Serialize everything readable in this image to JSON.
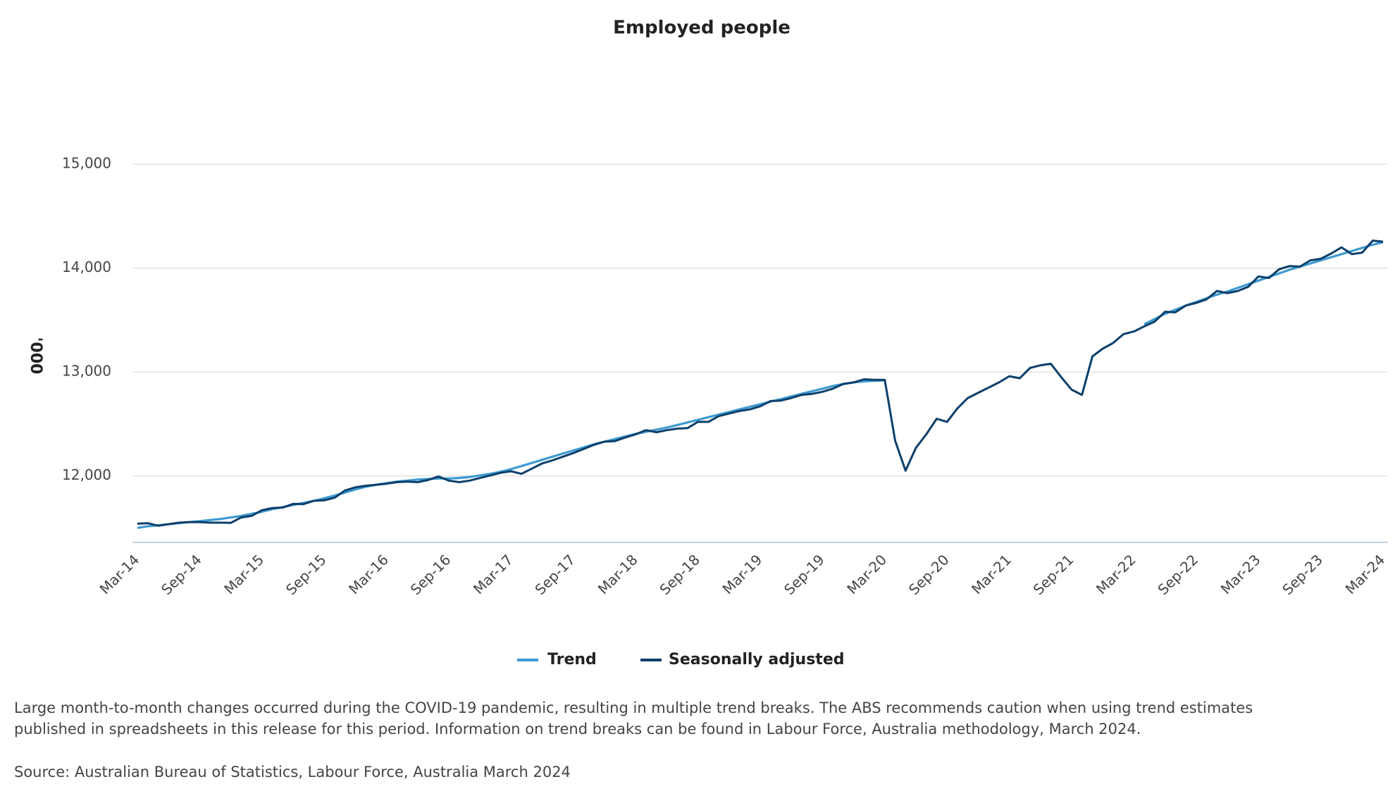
{
  "chart_data": {
    "type": "line",
    "title": "Employed people",
    "y_label": "'000",
    "categories": [
      "Mar-14",
      null,
      null,
      null,
      null,
      null,
      "Sep-14",
      null,
      null,
      null,
      null,
      null,
      "Mar-15",
      null,
      null,
      null,
      null,
      null,
      "Sep-15",
      null,
      null,
      null,
      null,
      null,
      "Mar-16",
      null,
      null,
      null,
      null,
      null,
      "Sep-16",
      null,
      null,
      null,
      null,
      null,
      "Mar-17",
      null,
      null,
      null,
      null,
      null,
      "Sep-17",
      null,
      null,
      null,
      null,
      null,
      "Mar-18",
      null,
      null,
      null,
      null,
      null,
      "Sep-18",
      null,
      null,
      null,
      null,
      null,
      "Mar-19",
      null,
      null,
      null,
      null,
      null,
      "Sep-19",
      null,
      null,
      null,
      null,
      null,
      "Mar-20",
      null,
      null,
      null,
      null,
      null,
      "Sep-20",
      null,
      null,
      null,
      null,
      null,
      "Mar-21",
      null,
      null,
      null,
      null,
      null,
      "Sep-21",
      null,
      null,
      null,
      null,
      null,
      "Mar-22",
      null,
      null,
      null,
      null,
      null,
      "Sep-22",
      null,
      null,
      null,
      null,
      null,
      "Mar-23",
      null,
      null,
      null,
      null,
      null,
      "Sep-23",
      null,
      null,
      null,
      null,
      null,
      "Mar-24"
    ],
    "series": [
      {
        "name": "Trend",
        "color": "#3d9ad1",
        "values": [
          11500,
          11515,
          11525,
          11535,
          11545,
          11555,
          11565,
          11575,
          11585,
          11600,
          11615,
          11635,
          11655,
          11680,
          11700,
          11720,
          11740,
          11760,
          11785,
          11810,
          11840,
          11870,
          11895,
          11915,
          11930,
          11945,
          11955,
          11965,
          11970,
          11975,
          11975,
          11980,
          11990,
          12005,
          12020,
          12040,
          12065,
          12095,
          12125,
          12155,
          12185,
          12215,
          12245,
          12275,
          12305,
          12330,
          12355,
          12380,
          12405,
          12425,
          12445,
          12465,
          12490,
          12515,
          12540,
          12565,
          12590,
          12615,
          12640,
          12665,
          12690,
          12715,
          12740,
          12765,
          12790,
          12815,
          12840,
          12865,
          12885,
          12900,
          12910,
          12915,
          12920,
          null,
          null,
          null,
          null,
          null,
          null,
          null,
          null,
          null,
          null,
          null,
          null,
          null,
          null,
          null,
          null,
          null,
          null,
          null,
          null,
          null,
          null,
          null,
          null,
          13460,
          13510,
          13560,
          13600,
          13640,
          13675,
          13710,
          13745,
          13775,
          13810,
          13845,
          13880,
          13915,
          13950,
          13985,
          14015,
          14045,
          14075,
          14105,
          14135,
          14165,
          14195,
          14225,
          14250
        ]
      },
      {
        "name": "Seasonally adjusted",
        "color": "#0b3f6b",
        "values": [
          11540,
          11545,
          11520,
          11535,
          11550,
          11555,
          11555,
          11550,
          11550,
          11548,
          11600,
          11615,
          11670,
          11690,
          11695,
          11730,
          11728,
          11760,
          11765,
          11790,
          11860,
          11890,
          11905,
          11915,
          11925,
          11940,
          11945,
          11940,
          11960,
          11995,
          11955,
          11940,
          11955,
          11980,
          12005,
          12030,
          12045,
          12020,
          12070,
          12120,
          12150,
          12185,
          12220,
          12260,
          12300,
          12330,
          12335,
          12370,
          12400,
          12440,
          12420,
          12440,
          12455,
          12460,
          12520,
          12520,
          12575,
          12600,
          12625,
          12640,
          12670,
          12720,
          12725,
          12750,
          12780,
          12790,
          12810,
          12840,
          12885,
          12900,
          12930,
          12925,
          12925,
          12340,
          12050,
          12270,
          12400,
          12550,
          12520,
          12650,
          12750,
          12800,
          12850,
          12900,
          12960,
          12940,
          13040,
          13065,
          13080,
          12950,
          12830,
          12780,
          13150,
          13225,
          13280,
          13365,
          13390,
          13440,
          13485,
          13580,
          13575,
          13640,
          13665,
          13700,
          13780,
          13760,
          13780,
          13820,
          13920,
          13905,
          13990,
          14020,
          14015,
          14075,
          14090,
          14140,
          14200,
          14135,
          14150,
          14265,
          14255
        ]
      }
    ],
    "ylim": [
      11360,
      15700
    ],
    "yticks": [
      {
        "value": 12000,
        "label": "12,000"
      },
      {
        "value": 13000,
        "label": "13,000"
      },
      {
        "value": 14000,
        "label": "14,000"
      },
      {
        "value": 15000,
        "label": "15,000"
      }
    ],
    "grid": true,
    "legend": "bottom"
  },
  "notes": [
    "Large month-to-month changes occurred during the COVID-19 pandemic, resulting in multiple trend breaks. The ABS recommends caution when using trend estimates published in spreadsheets in this release for this period. Information on trend breaks can be found in Labour Force, Australia methodology, March 2024.",
    "Source: Australian Bureau of Statistics, Labour Force, Australia March 2024"
  ]
}
